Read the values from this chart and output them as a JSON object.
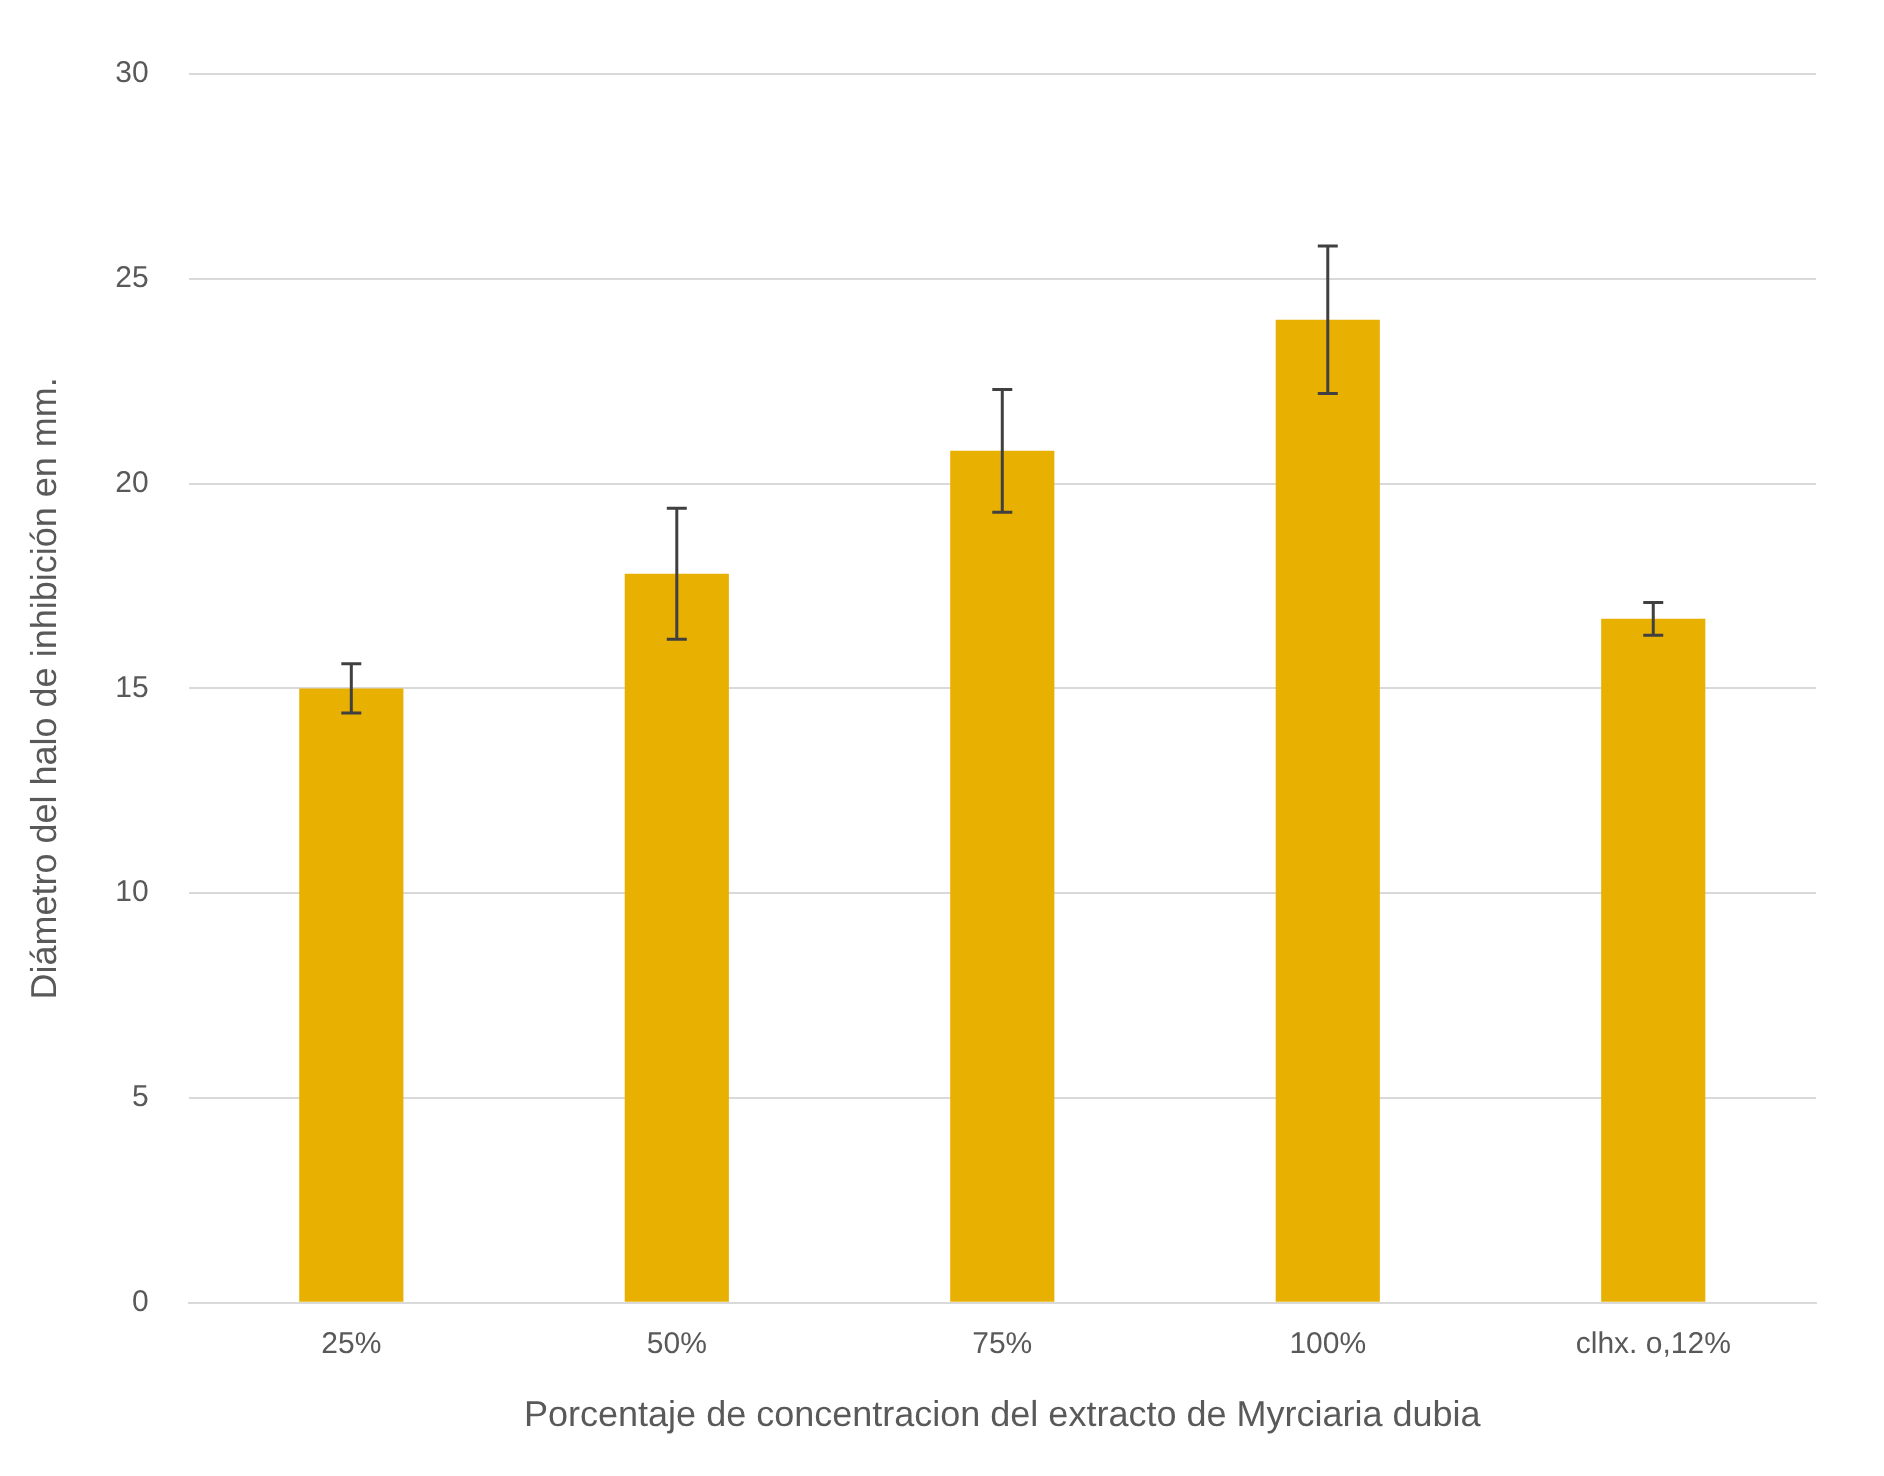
{
  "chart_data": {
    "type": "bar",
    "xlabel": "Porcentaje de concentracion del extracto de Myrciaria dubia",
    "ylabel": "Diámetro del halo de inhibición en mm.",
    "categories": [
      "25%",
      "50%",
      "75%",
      "100%",
      "clhx. o,12%"
    ],
    "values": [
      15.0,
      17.8,
      20.8,
      24.0,
      16.7
    ],
    "errors": [
      0.6,
      1.6,
      1.5,
      1.8,
      0.4
    ],
    "color": "#e8b000",
    "ylim": [
      0,
      30
    ],
    "yticks": [
      0,
      5,
      10,
      15,
      20,
      25,
      30
    ],
    "grid": "y",
    "legend": false
  }
}
